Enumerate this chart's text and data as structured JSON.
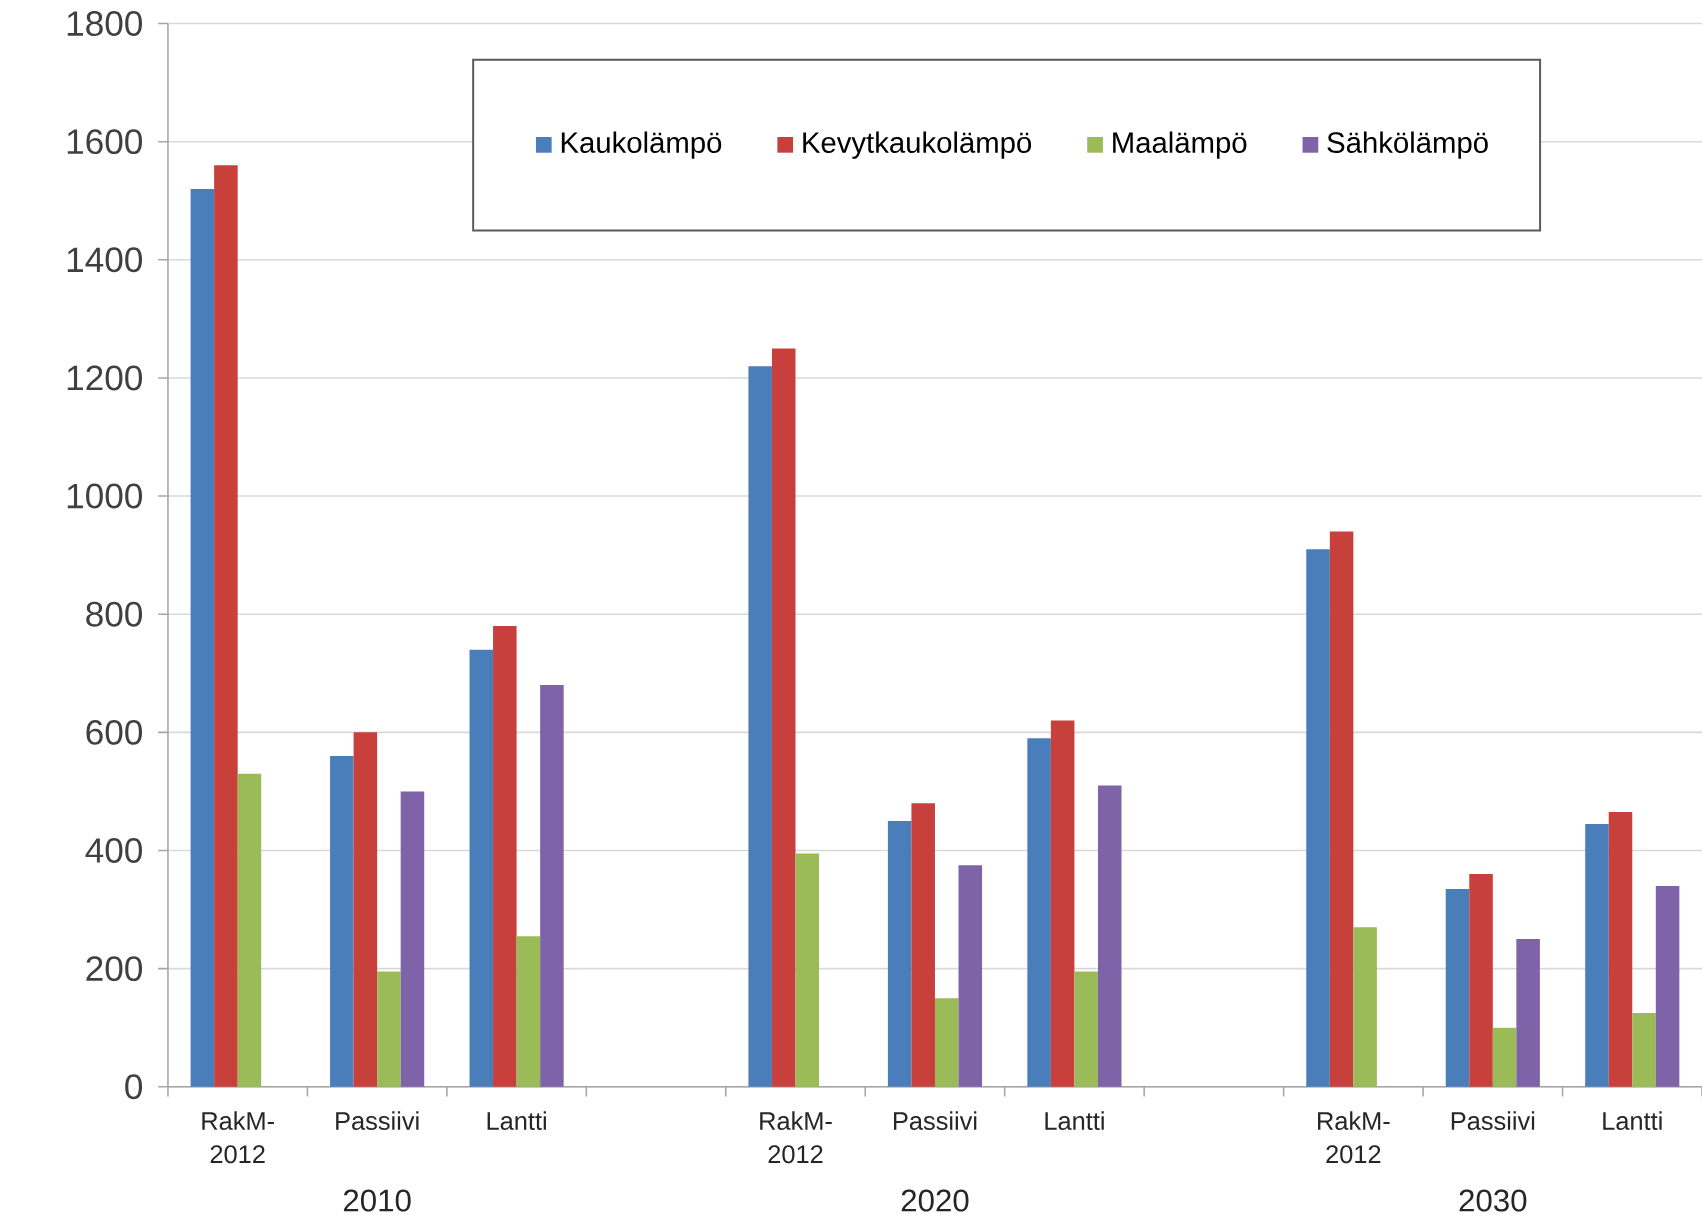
{
  "chart_data": {
    "type": "bar",
    "categories": [
      "RakM-2012",
      "Passiivi",
      "Lantti",
      null,
      "RakM-2012",
      "Passiivi",
      "Lantti",
      null,
      "RakM-2012",
      "Passiivi",
      "Lantti"
    ],
    "series": [
      {
        "name": "Kaukolämpö",
        "color": "#4a7ebb",
        "values": [
          1520,
          560,
          740,
          null,
          1220,
          450,
          590,
          null,
          910,
          335,
          445
        ]
      },
      {
        "name": "Kevytkaukolämpö",
        "color": "#c8403c",
        "values": [
          1560,
          600,
          780,
          null,
          1250,
          480,
          620,
          null,
          940,
          360,
          465
        ]
      },
      {
        "name": "Maalämpö",
        "color": "#9bbb59",
        "values": [
          530,
          195,
          255,
          null,
          395,
          150,
          195,
          null,
          270,
          100,
          125
        ]
      },
      {
        "name": "Sähkölämpö",
        "color": "#7f63a8",
        "values": [
          null,
          500,
          680,
          null,
          null,
          375,
          510,
          null,
          null,
          250,
          340
        ]
      }
    ],
    "ylim": [
      0,
      1800
    ],
    "yticks": [
      0,
      200,
      400,
      600,
      800,
      1000,
      1200,
      1400,
      1600,
      1800
    ],
    "grid": "y",
    "legend": "top",
    "annotations": [
      "2010",
      "2020",
      "2030"
    ]
  }
}
